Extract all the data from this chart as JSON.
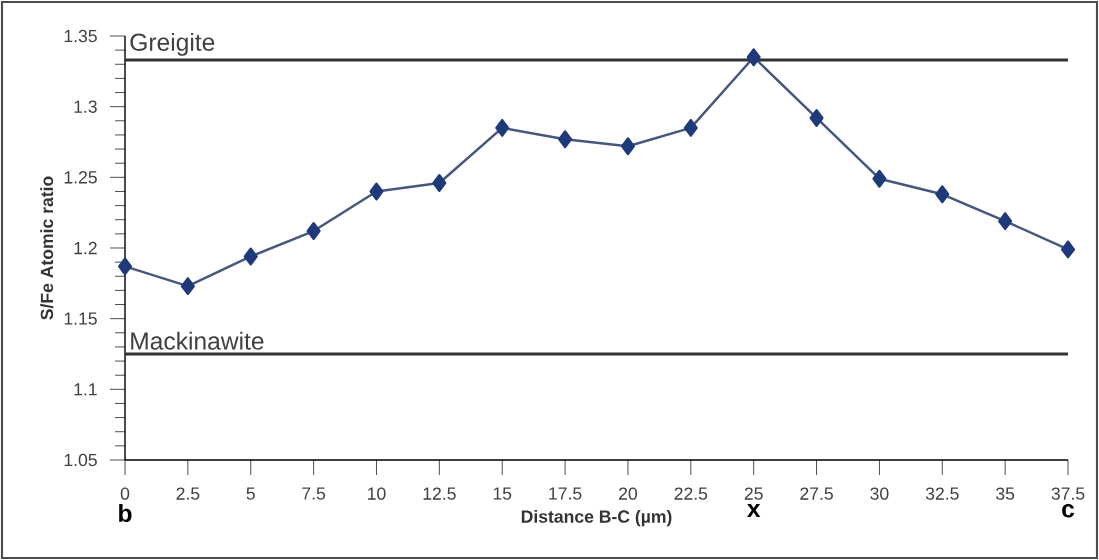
{
  "chart_data": {
    "type": "line",
    "xlabel": "Distance B-C (µm)",
    "ylabel": "S/Fe Atomic ratio",
    "x": [
      0,
      2.5,
      5,
      7.5,
      10,
      12.5,
      15,
      17.5,
      20,
      22.5,
      25,
      27.5,
      30,
      32.5,
      35,
      37.5
    ],
    "series": [
      {
        "color": "#1f3a7a",
        "values": [
          1.187,
          1.173,
          1.194,
          1.212,
          1.24,
          1.246,
          1.285,
          1.277,
          1.272,
          1.285,
          1.335,
          1.292,
          1.249,
          1.238,
          1.219,
          1.199
        ]
      }
    ],
    "xlim": [
      0,
      37.5
    ],
    "ylim": [
      1.05,
      1.35
    ],
    "xticks": [
      0,
      2.5,
      5,
      7.5,
      10,
      12.5,
      15,
      17.5,
      20,
      22.5,
      25,
      27.5,
      30,
      32.5,
      35,
      37.5
    ],
    "yticks": [
      1.05,
      1.1,
      1.15,
      1.2,
      1.25,
      1.3,
      1.35
    ],
    "ref_lines": [
      {
        "axis": "y",
        "value": 1.333,
        "label": "Greigite",
        "color": "#333333"
      },
      {
        "axis": "y",
        "value": 1.125,
        "label": "Mackinawite",
        "color": "#333333"
      }
    ],
    "annotations": [
      "b",
      "x",
      "c"
    ],
    "marker": "diamond",
    "line_style": "solid",
    "grid": false
  }
}
